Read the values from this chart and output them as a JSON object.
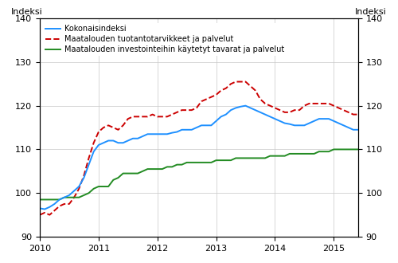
{
  "ylabel_left": "Indeksi",
  "ylabel_right": "Indeksi",
  "ylim": [
    90,
    140
  ],
  "yticks": [
    90,
    100,
    110,
    120,
    130,
    140
  ],
  "series1_label": "Kokonaisindeksi",
  "series2_label": "Maatalouden tuotantotarvikkeet ja palvelut",
  "series3_label": "Maatalouden investointeihin käytetyt tavarat ja palvelut",
  "series1_color": "#1E90FF",
  "series2_color": "#CC0000",
  "series3_color": "#228B22",
  "series1_lw": 1.4,
  "series2_lw": 1.4,
  "series3_lw": 1.4,
  "series1_style": "-",
  "series2_style": "--",
  "series3_style": "-",
  "xtick_labels": [
    "2010",
    "2011",
    "2012",
    "2013",
    "2014",
    "2015"
  ],
  "xtick_positions": [
    0,
    12,
    24,
    36,
    48,
    60
  ],
  "kokonaisindeksi": [
    96.5,
    96.3,
    96.8,
    97.5,
    98.5,
    99.0,
    99.5,
    100.5,
    101.5,
    103.5,
    106.5,
    109.5,
    111.0,
    111.5,
    112.0,
    112.0,
    111.5,
    111.5,
    112.0,
    112.5,
    112.5,
    113.0,
    113.5,
    113.5,
    113.5,
    113.5,
    113.5,
    113.8,
    114.0,
    114.5,
    114.5,
    114.5,
    115.0,
    115.5,
    115.5,
    115.5,
    116.5,
    117.5,
    118.0,
    119.0,
    119.5,
    119.8,
    120.0,
    119.5,
    119.0,
    118.5,
    118.0,
    117.5,
    117.0,
    116.5,
    116.0,
    115.8,
    115.5,
    115.5,
    115.5,
    116.0,
    116.5,
    117.0,
    117.0,
    117.0,
    116.5,
    116.0,
    115.5,
    115.0,
    114.5,
    114.5
  ],
  "tuotantotarvikkeet": [
    95.0,
    95.5,
    95.0,
    96.0,
    97.0,
    97.5,
    97.5,
    99.0,
    101.0,
    104.0,
    108.0,
    111.5,
    114.0,
    115.0,
    115.5,
    115.0,
    114.5,
    115.5,
    117.0,
    117.5,
    117.5,
    117.5,
    117.5,
    118.0,
    117.5,
    117.5,
    117.5,
    118.0,
    118.5,
    119.0,
    119.0,
    119.0,
    119.5,
    121.0,
    121.5,
    122.0,
    122.5,
    123.5,
    124.0,
    125.0,
    125.5,
    125.5,
    125.5,
    124.5,
    123.5,
    121.5,
    120.5,
    120.0,
    119.5,
    119.0,
    118.5,
    118.5,
    119.0,
    119.0,
    120.0,
    120.5,
    120.5,
    120.5,
    120.5,
    120.5,
    120.0,
    119.5,
    119.0,
    118.5,
    118.0,
    118.0
  ],
  "investointitavarat": [
    98.5,
    98.5,
    98.5,
    98.5,
    98.5,
    99.0,
    99.0,
    99.0,
    99.0,
    99.5,
    100.0,
    101.0,
    101.5,
    101.5,
    101.5,
    103.0,
    103.5,
    104.5,
    104.5,
    104.5,
    104.5,
    105.0,
    105.5,
    105.5,
    105.5,
    105.5,
    106.0,
    106.0,
    106.5,
    106.5,
    107.0,
    107.0,
    107.0,
    107.0,
    107.0,
    107.0,
    107.5,
    107.5,
    107.5,
    107.5,
    108.0,
    108.0,
    108.0,
    108.0,
    108.0,
    108.0,
    108.0,
    108.5,
    108.5,
    108.5,
    108.5,
    109.0,
    109.0,
    109.0,
    109.0,
    109.0,
    109.0,
    109.5,
    109.5,
    109.5,
    110.0,
    110.0,
    110.0,
    110.0,
    110.0,
    110.0
  ]
}
